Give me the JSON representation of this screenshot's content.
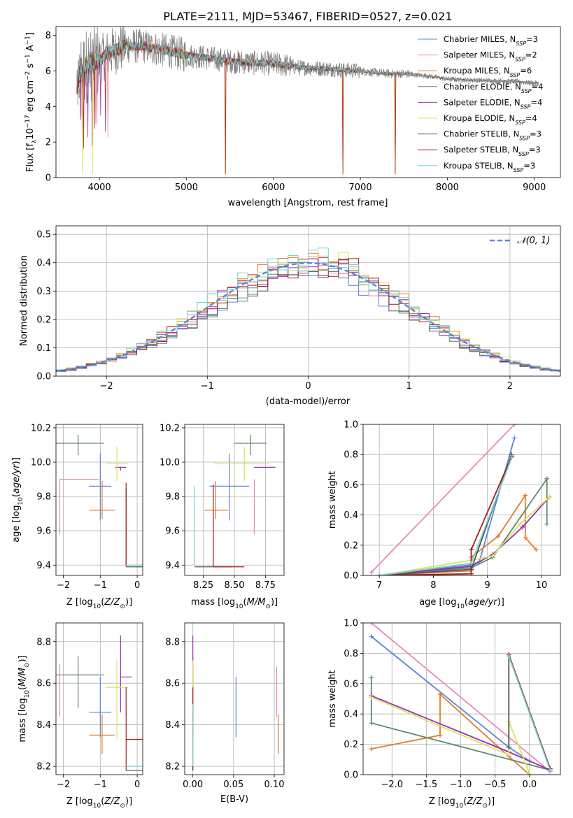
{
  "figure_title": "PLATE=2111, MJD=53467, FIBERID=0527, z=0.021",
  "colors": {
    "Chabrier MILES": "#5b85d8",
    "Salpeter MILES": "#e58cb9",
    "Kroupa MILES": "#e07b2c",
    "Chabrier ELODIE": "#5f8a6a",
    "Salpeter ELODIE": "#9b2fb3",
    "Kroupa ELODIE": "#d9e35a",
    "Chabrier STELIB": "#555555",
    "Salpeter STELIB": "#a11d1d",
    "Kroupa STELIB": "#6fd3d6",
    "data": "#808080",
    "normal": "#5b85d8"
  },
  "chart_data": [
    {
      "id": "spectrum",
      "type": "line",
      "xlabel": "wavelength [Angstrom, rest frame]",
      "ylabel": "Flux [f_λ10^{-17} erg cm^{-2} s^{-1} A^{-1}]",
      "xlim": [
        3500,
        9300
      ],
      "ylim": [
        0,
        8.5
      ],
      "xticks": [
        4000,
        5000,
        6000,
        7000,
        8000,
        9000
      ],
      "yticks": [
        0,
        2,
        4,
        6,
        8
      ],
      "legend_position": "top-right",
      "continuum": [
        [
          3750,
          5.5
        ],
        [
          3850,
          6.3
        ],
        [
          4000,
          6.6
        ],
        [
          4100,
          7.0
        ],
        [
          4300,
          7.4
        ],
        [
          4500,
          7.4
        ],
        [
          4700,
          7.2
        ],
        [
          5000,
          6.9
        ],
        [
          5300,
          6.7
        ],
        [
          5600,
          6.5
        ],
        [
          6000,
          6.4
        ],
        [
          6300,
          6.2
        ],
        [
          6700,
          6.1
        ],
        [
          7000,
          6.0
        ],
        [
          7300,
          5.85
        ],
        [
          7500,
          5.85
        ],
        [
          7800,
          5.7
        ],
        [
          8000,
          5.55
        ],
        [
          8200,
          5.5
        ],
        [
          8500,
          5.45
        ],
        [
          8800,
          5.4
        ],
        [
          9050,
          5.3
        ]
      ],
      "model_dropouts": [
        5450,
        6800,
        7400
      ],
      "series": [
        {
          "name": "Chabrier MILES",
          "legend": "Chabrier MILES, N",
          "sub": "SSP",
          "n": "3"
        },
        {
          "name": "Salpeter MILES",
          "legend": "Salpeter MILES, N",
          "sub": "SSP",
          "n": "2"
        },
        {
          "name": "Kroupa MILES",
          "legend": "Kroupa MILES, N",
          "sub": "SSP",
          "n": "6"
        },
        {
          "name": "Chabrier ELODIE",
          "legend": "Chabrier ELODIE, N",
          "sub": "SSP",
          "n": "4"
        },
        {
          "name": "Salpeter ELODIE",
          "legend": "Salpeter ELODIE, N",
          "sub": "SSP",
          "n": "4"
        },
        {
          "name": "Kroupa ELODIE",
          "legend": "Kroupa ELODIE, N",
          "sub": "SSP",
          "n": "4"
        },
        {
          "name": "Chabrier STELIB",
          "legend": "Chabrier STELIB, N",
          "sub": "SSP",
          "n": "3"
        },
        {
          "name": "Salpeter STELIB",
          "legend": "Salpeter STELIB, N",
          "sub": "SSP",
          "n": "3"
        },
        {
          "name": "Kroupa STELIB",
          "legend": "Kroupa STELIB, N",
          "sub": "SSP",
          "n": "3"
        }
      ]
    },
    {
      "id": "residuals",
      "type": "histogram",
      "xlabel": "(data-model)/error",
      "ylabel": "Normed distribution",
      "xlim": [
        -2.5,
        2.5
      ],
      "ylim": [
        0,
        0.53
      ],
      "xticks": [
        -2,
        -1,
        0,
        1,
        2
      ],
      "yticks": [
        0.0,
        0.1,
        0.2,
        0.3,
        0.4,
        0.5
      ],
      "bin_width": 0.1,
      "legend_position": "top-right",
      "legend": "𝒩(0, 1)",
      "grid": true
    },
    {
      "id": "age_vs_Z",
      "type": "errorbar",
      "xlabel": "Z [log10(Z/Z⊙)]",
      "ylabel": "age [log10(age/yr)]",
      "xlim": [
        -2.2,
        0.15
      ],
      "ylim": [
        9.34,
        10.22
      ],
      "xticks": [
        -2,
        -1,
        0
      ],
      "yticks": [
        9.4,
        9.6,
        9.8,
        10.0,
        10.2
      ],
      "grid": true,
      "points": [
        {
          "s": "Chabrier MILES",
          "x": -1.0,
          "xerr": [
            0.3,
            0.3
          ],
          "y": 9.86,
          "yerr": [
            0.2,
            0.19
          ]
        },
        {
          "s": "Salpeter MILES",
          "x": -2.1,
          "xerr": [
            0,
            1.05
          ],
          "y": 9.9,
          "yerr": [
            0.32,
            0.0
          ]
        },
        {
          "s": "Kroupa MILES",
          "x": -0.95,
          "xerr": [
            0.35,
            0.35
          ],
          "y": 9.72,
          "yerr": [
            0.05,
            0.17
          ]
        },
        {
          "s": "Chabrier ELODIE",
          "x": -1.6,
          "xerr": [
            0.7,
            0.7
          ],
          "y": 10.11,
          "yerr": [
            0.07,
            0.05
          ]
        },
        {
          "s": "Salpeter ELODIE",
          "x": -0.45,
          "xerr": [
            0.15,
            0.15
          ],
          "y": 9.97,
          "yerr": [
            0.02,
            0.0
          ]
        },
        {
          "s": "Kroupa ELODIE",
          "x": -0.55,
          "xerr": [
            0.3,
            0.3
          ],
          "y": 9.99,
          "yerr": [
            0.1,
            0.1
          ]
        },
        {
          "s": "Chabrier STELIB",
          "x": -0.3,
          "xerr": [
            0.0,
            0.45
          ],
          "y": 9.39,
          "yerr": [
            0.0,
            0.46
          ]
        },
        {
          "s": "Salpeter STELIB",
          "x": -0.3,
          "xerr": [
            0.0,
            0.0
          ],
          "y": 9.4,
          "yerr": [
            0.0,
            0.48
          ]
        },
        {
          "s": "Kroupa STELIB",
          "x": -0.3,
          "xerr": [
            0.0,
            0.45
          ],
          "y": 9.4,
          "yerr": [
            0.0,
            0.0
          ]
        }
      ]
    },
    {
      "id": "age_vs_mass",
      "type": "errorbar",
      "xlabel": "mass [log10(M/M⊙)]",
      "ylabel": "",
      "xlim": [
        8.1,
        8.9
      ],
      "ylim": [
        9.34,
        10.22
      ],
      "xticks": [
        8.25,
        8.5,
        8.75
      ],
      "yticks": [
        9.4,
        9.6,
        9.8,
        10.0,
        10.2
      ],
      "grid": true,
      "points": [
        {
          "s": "Chabrier MILES",
          "x": 8.46,
          "xerr": [
            0.16,
            0.16
          ],
          "y": 9.86,
          "yerr": [
            0.2,
            0.19
          ]
        },
        {
          "s": "Salpeter MILES",
          "x": 8.66,
          "xerr": [
            0.0,
            0.0
          ],
          "y": 9.9,
          "yerr": [
            0.32,
            0.0
          ]
        },
        {
          "s": "Kroupa MILES",
          "x": 8.35,
          "xerr": [
            0.09,
            0.1
          ],
          "y": 9.72,
          "yerr": [
            0.05,
            0.17
          ]
        },
        {
          "s": "Chabrier ELODIE",
          "x": 8.63,
          "xerr": [
            0.13,
            0.13
          ],
          "y": 10.11,
          "yerr": [
            0.07,
            0.05
          ]
        },
        {
          "s": "Salpeter ELODIE",
          "x": 8.66,
          "xerr": [
            0.0,
            0.17
          ],
          "y": 9.97,
          "yerr": [
            0.0,
            0.0
          ]
        },
        {
          "s": "Kroupa ELODIE",
          "x": 8.58,
          "xerr": [
            0.24,
            0.2
          ],
          "y": 9.99,
          "yerr": [
            0.1,
            0.1
          ]
        },
        {
          "s": "Chabrier STELIB",
          "x": 8.18,
          "xerr": [
            0.0,
            0.3
          ],
          "y": 9.39,
          "yerr": [
            0.0,
            0.0
          ]
        },
        {
          "s": "Salpeter STELIB",
          "x": 8.33,
          "xerr": [
            0.0,
            0.25
          ],
          "y": 9.39,
          "yerr": [
            0.0,
            0.48
          ]
        },
        {
          "s": "Kroupa STELIB",
          "x": 8.18,
          "xerr": [
            0.0,
            0.0
          ],
          "y": 9.4,
          "yerr": [
            0.0,
            0.46
          ]
        }
      ]
    },
    {
      "id": "weight_vs_age",
      "type": "line",
      "xlabel": "age [log10(age/yr)]",
      "ylabel": "mass weight",
      "xlim": [
        6.7,
        10.35
      ],
      "ylim": [
        0,
        1.0
      ],
      "xticks": [
        7,
        8,
        9,
        10
      ],
      "yticks": [
        0.0,
        0.2,
        0.4,
        0.6,
        0.8,
        1.0
      ],
      "grid": true,
      "series": [
        {
          "name": "Chabrier MILES",
          "x": [
            7.0,
            8.7,
            8.85,
            9.5
          ],
          "y": [
            0.0,
            0.07,
            0.09,
            0.91
          ]
        },
        {
          "name": "Salpeter MILES",
          "x": [
            6.85,
            9.5
          ],
          "y": [
            0.02,
            1.0
          ]
        },
        {
          "name": "Kroupa MILES",
          "x": [
            7.0,
            8.7,
            8.7,
            9.2,
            9.7,
            9.7,
            9.9
          ],
          "y": [
            0.0,
            0.03,
            0.12,
            0.26,
            0.53,
            0.25,
            0.17
          ]
        },
        {
          "name": "Chabrier ELODIE",
          "x": [
            7.0,
            8.7,
            9.1,
            10.1,
            10.1
          ],
          "y": [
            0.0,
            0.05,
            0.12,
            0.64,
            0.34
          ]
        },
        {
          "name": "Salpeter ELODIE",
          "x": [
            7.0,
            8.7,
            9.1,
            9.65,
            10.15
          ],
          "y": [
            0.0,
            0.06,
            0.14,
            0.32,
            0.52
          ]
        },
        {
          "name": "Kroupa ELODIE",
          "x": [
            7.0,
            8.7,
            9.1,
            9.6,
            10.15
          ],
          "y": [
            0.0,
            0.1,
            0.13,
            0.34,
            0.52
          ]
        },
        {
          "name": "Chabrier STELIB",
          "x": [
            7.0,
            8.7,
            9.45
          ],
          "y": [
            0.0,
            0.04,
            0.8
          ]
        },
        {
          "name": "Salpeter STELIB",
          "x": [
            7.0,
            8.7,
            8.7,
            9.45
          ],
          "y": [
            0.0,
            0.01,
            0.17,
            0.79
          ]
        },
        {
          "name": "Kroupa STELIB",
          "x": [
            7.0,
            8.7,
            9.45
          ],
          "y": [
            0.0,
            0.08,
            0.78
          ]
        }
      ]
    },
    {
      "id": "mass_vs_Z",
      "type": "errorbar",
      "xlabel": "Z [log10(Z/Z⊙)]",
      "ylabel": "mass [log10(M/M⊙)]",
      "xlim": [
        -2.2,
        0.15
      ],
      "ylim": [
        8.16,
        8.89
      ],
      "xticks": [
        -2,
        -1,
        0
      ],
      "yticks": [
        8.2,
        8.4,
        8.6,
        8.8
      ],
      "grid": true,
      "points": [
        {
          "s": "Chabrier MILES",
          "x": -1.0,
          "xerr": [
            0.3,
            0.3
          ],
          "y": 8.46,
          "yerr": [
            0.12,
            0.17
          ]
        },
        {
          "s": "Salpeter MILES",
          "x": -2.1,
          "xerr": [
            0,
            1.05
          ],
          "y": 8.64,
          "yerr": [
            0.2,
            0.05
          ]
        },
        {
          "s": "Kroupa MILES",
          "x": -0.95,
          "xerr": [
            0.35,
            0.35
          ],
          "y": 8.35,
          "yerr": [
            0.09,
            0.1
          ]
        },
        {
          "s": "Chabrier ELODIE",
          "x": -1.6,
          "xerr": [
            0.7,
            0.7
          ],
          "y": 8.64,
          "yerr": [
            0.16,
            0.09
          ]
        },
        {
          "s": "Salpeter ELODIE",
          "x": -0.45,
          "xerr": [
            0.0,
            0.3
          ],
          "y": 8.63,
          "yerr": [
            0.17,
            0.2
          ]
        },
        {
          "s": "Kroupa ELODIE",
          "x": -0.55,
          "xerr": [
            0.3,
            0.3
          ],
          "y": 8.58,
          "yerr": [
            0.25,
            0.13
          ]
        },
        {
          "s": "Chabrier STELIB",
          "x": -0.3,
          "xerr": [
            0.0,
            0.45
          ],
          "y": 8.18,
          "yerr": [
            0.0,
            0.0
          ]
        },
        {
          "s": "Salpeter STELIB",
          "x": -0.3,
          "xerr": [
            0.0,
            0.5
          ],
          "y": 8.33,
          "yerr": [
            0.15,
            0.25
          ]
        },
        {
          "s": "Kroupa STELIB",
          "x": -0.3,
          "xerr": [
            0.0,
            0.45
          ],
          "y": 8.2,
          "yerr": [
            0.0,
            0.0
          ]
        }
      ]
    },
    {
      "id": "mass_vs_EBV",
      "type": "errorbar",
      "xlabel": "E(B-V)",
      "ylabel": "",
      "xlim": [
        -0.01,
        0.112
      ],
      "ylim": [
        8.16,
        8.89
      ],
      "xticks": [
        0.0,
        0.05,
        0.1
      ],
      "yticks": [
        8.2,
        8.4,
        8.6,
        8.8
      ],
      "grid": true,
      "points": [
        {
          "s": "Chabrier MILES",
          "x": 0.053,
          "y": 8.48,
          "yerr": [
            0.14,
            0.15
          ]
        },
        {
          "s": "Salpeter MILES",
          "x": 0.103,
          "y": 8.56,
          "yerr": [
            0.12,
            0.12
          ]
        },
        {
          "s": "Kroupa MILES",
          "x": 0.105,
          "y": 8.35,
          "yerr": [
            0.09,
            0.1
          ]
        },
        {
          "s": "Chabrier ELODIE",
          "x": 0.0,
          "y": 8.64,
          "yerr": [
            0.16,
            0.09
          ]
        },
        {
          "s": "Salpeter ELODIE",
          "x": 0.0,
          "y": 8.63,
          "yerr": [
            0.17,
            0.2
          ]
        },
        {
          "s": "Kroupa ELODIE",
          "x": 0.0,
          "y": 8.58,
          "yerr": [
            0.25,
            0.13
          ]
        },
        {
          "s": "Chabrier STELIB",
          "x": 0.0,
          "y": 8.2,
          "yerr": [
            0.02,
            0.0
          ]
        },
        {
          "s": "Salpeter STELIB",
          "x": 0.0,
          "y": 8.33,
          "yerr": [
            0.15,
            0.25
          ]
        },
        {
          "s": "Kroupa STELIB",
          "x": 0.0,
          "y": 8.3,
          "yerr": [
            0.1,
            0.2
          ]
        }
      ]
    },
    {
      "id": "weight_vs_Z",
      "type": "line",
      "xlabel": "Z [log10(Z/Z⊙)]",
      "ylabel": "mass weight",
      "xlim": [
        -2.42,
        0.45
      ],
      "ylim": [
        0,
        1.0
      ],
      "xticks": [
        -2.0,
        -1.5,
        -1.0,
        -0.5,
        0.0
      ],
      "yticks": [
        0.0,
        0.2,
        0.4,
        0.6,
        0.8,
        1.0
      ],
      "grid": true,
      "series": [
        {
          "name": "Chabrier MILES",
          "x": [
            -2.3,
            -0.3,
            0.0
          ],
          "y": [
            0.91,
            0.18,
            0.09
          ]
        },
        {
          "name": "Salpeter MILES",
          "x": [
            -2.3,
            0.3
          ],
          "y": [
            1.0,
            0.02
          ]
        },
        {
          "name": "Kroupa MILES",
          "x": [
            -2.3,
            -1.3,
            -1.3,
            -0.3,
            0.0
          ],
          "y": [
            0.17,
            0.26,
            0.53,
            0.12,
            0.0
          ]
        },
        {
          "name": "Chabrier ELODIE",
          "x": [
            -2.3,
            -2.3,
            0.3
          ],
          "y": [
            0.64,
            0.34,
            0.03
          ]
        },
        {
          "name": "Salpeter ELODIE",
          "x": [
            -2.3,
            -0.3,
            0.3
          ],
          "y": [
            0.52,
            0.15,
            0.03
          ]
        },
        {
          "name": "Kroupa ELODIE",
          "x": [
            -2.3,
            -0.3,
            -0.3,
            0.0
          ],
          "y": [
            0.51,
            0.13,
            0.35,
            0.01
          ]
        },
        {
          "name": "Chabrier STELIB",
          "x": [
            -0.3,
            -0.3,
            0.3
          ],
          "y": [
            0.18,
            0.79,
            0.04
          ]
        },
        {
          "name": "Salpeter STELIB",
          "x": [
            -0.3,
            0.3
          ],
          "y": [
            0.79,
            0.04
          ]
        },
        {
          "name": "Kroupa STELIB",
          "x": [
            -0.3,
            0.3
          ],
          "y": [
            0.78,
            0.03
          ]
        }
      ]
    }
  ]
}
